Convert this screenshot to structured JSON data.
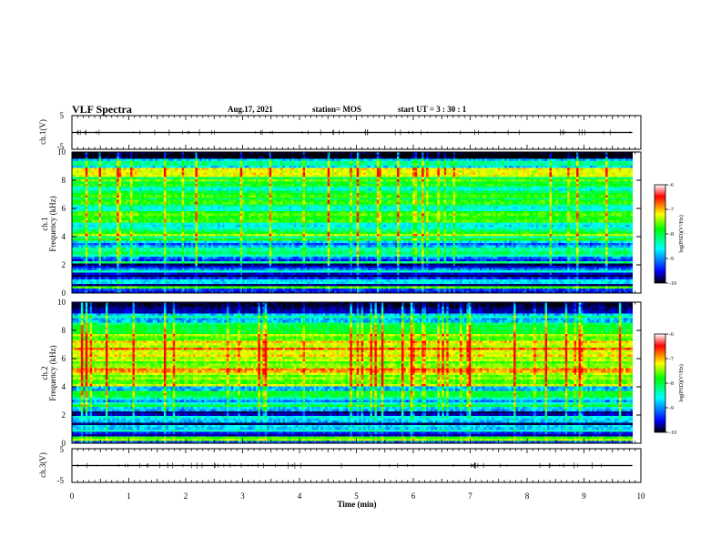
{
  "header": {
    "title": "VLF Spectra",
    "date": "Aug.17, 2021",
    "station": "station= MOS",
    "start": "start  UT =   3 : 30 : 1"
  },
  "colors": {
    "frame": "#000000",
    "colormap": [
      "#000000",
      "#0000ff",
      "#00ffff",
      "#00ff00",
      "#ffff00",
      "#ff0000",
      "#ffffff"
    ]
  },
  "chart_data": [
    {
      "type": "line",
      "panel": "ch1-waveform",
      "ylabel": "ch.1(V)",
      "ylim": [
        -5,
        5
      ],
      "yticks": [
        "5",
        "-5"
      ],
      "baseline": 0,
      "xlim": [
        0,
        10
      ]
    },
    {
      "type": "heatmap",
      "panel": "ch1-spectrogram",
      "ylabel": "ch.1\nFrequency  (kHz)",
      "ylim": [
        0,
        10
      ],
      "yticks": [
        "0",
        "2",
        "4",
        "6",
        "8",
        "10"
      ],
      "xlim": [
        0,
        10
      ],
      "data_end_min": 9.85,
      "colorbar": {
        "label": "log(PSD)(V²/Hz)",
        "range": [
          -10,
          -6
        ],
        "ticks": [
          "-6",
          "-7",
          "-8",
          "-9",
          "-10"
        ]
      }
    },
    {
      "type": "heatmap",
      "panel": "ch2-spectrogram",
      "ylabel": "ch.2\nFrequency  (kHz)",
      "ylim": [
        0,
        10
      ],
      "yticks": [
        "0",
        "2",
        "4",
        "6",
        "8",
        "10"
      ],
      "xlim": [
        0,
        10
      ],
      "data_end_min": 9.85,
      "colorbar": {
        "label": "log(PSD)(V²/Hz)",
        "range": [
          -10,
          -6
        ],
        "ticks": [
          "-6",
          "-7",
          "-8",
          "-9",
          "-10"
        ]
      }
    },
    {
      "type": "line",
      "panel": "ch3-waveform",
      "ylabel": "ch.3(V)",
      "ylim": [
        -5,
        5
      ],
      "yticks": [
        "5",
        "-5"
      ],
      "baseline": 0,
      "xlim": [
        0,
        10
      ]
    }
  ],
  "xaxis": {
    "label": "Time  (min)",
    "range": [
      0,
      10
    ],
    "ticks": [
      "0",
      "1",
      "2",
      "3",
      "4",
      "5",
      "6",
      "7",
      "8",
      "9",
      "10"
    ]
  }
}
